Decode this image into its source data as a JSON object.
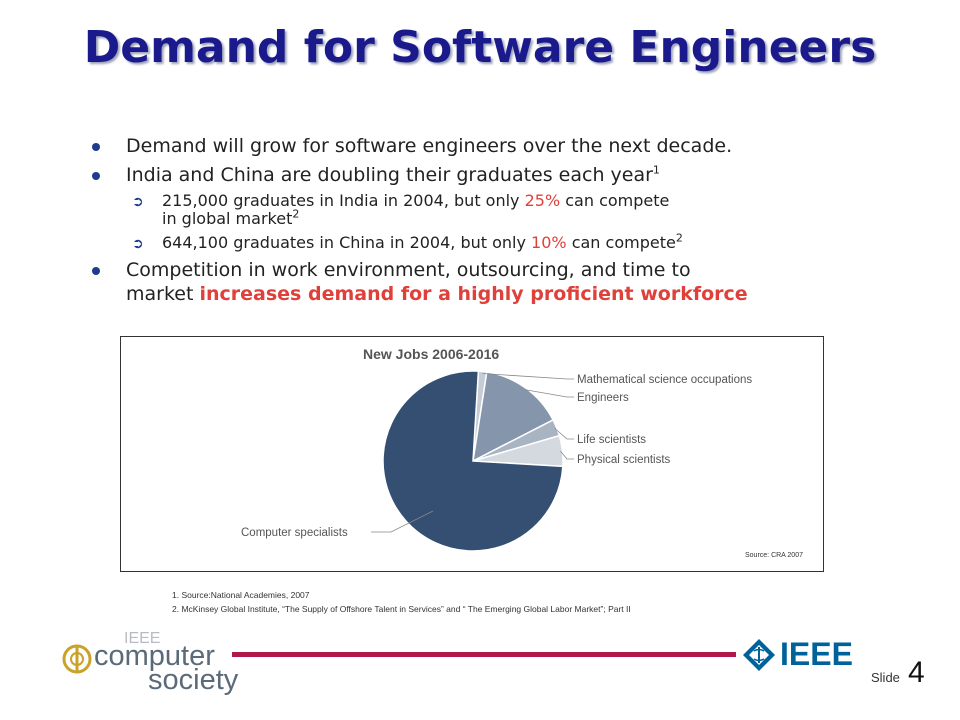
{
  "title": "Demand for Software Engineers",
  "bullets": {
    "b1": "Demand will grow for software engineers over the next decade.",
    "b2": "India and China are doubling their graduates each year",
    "b2_sup": "1",
    "sub1_a": "215,000 graduates in India in 2004, but only ",
    "sub1_pct": "25%",
    "sub1_b": " can compete",
    "sub1_c": "in global market",
    "sub1_sup": "2",
    "sub2_a": "644,100 graduates in China in 2004, but only ",
    "sub2_pct": "10%",
    "sub2_b": " can compete",
    "sub2_sup": "2",
    "b3_a": "Competition in work environment, outsourcing, and time to",
    "b3_b": "market ",
    "b3_emph": "increases demand for a highly proficient workforce"
  },
  "chart_data": {
    "type": "pie",
    "title": "New Jobs 2006-2016",
    "categories": [
      "Computer specialists",
      "Mathematical science occupations",
      "Engineers",
      "Life scientists",
      "Physical scientists"
    ],
    "values": [
      75,
      1.5,
      15,
      3,
      5.5
    ],
    "colors": [
      "#344f71",
      "#c5ccd6",
      "#8595ab",
      "#a9b4c3",
      "#d4d9e0"
    ],
    "source": "Source: CRA 2007"
  },
  "footnotes": {
    "f1": "1. Source:National Academies, 2007",
    "f2": "2. McKinsey Global Institute, “The Supply of Offshore Talent in Services” and “ The Emerging Global Labor Market”; Part II"
  },
  "logos": {
    "cs_top": "IEEE",
    "cs_mid": "computer",
    "cs_bot": "society",
    "ieee": "IEEE"
  },
  "slide": {
    "label": "Slide",
    "number": "4"
  }
}
